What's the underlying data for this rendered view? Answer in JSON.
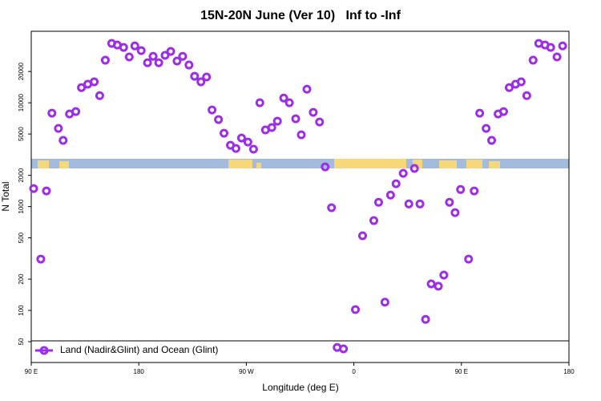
{
  "chart_data": {
    "type": "scatter",
    "title": "15N-20N June (Ver 10)   Inf to -Inf",
    "xlabel": "Longitude (deg E)",
    "ylabel": "N Total",
    "xlim": [
      90,
      540
    ],
    "xticks": [
      {
        "value": 90,
        "label": "90 E"
      },
      180,
      {
        "value": 270,
        "label": "90 W"
      },
      {
        "value": 360,
        "label": "0"
      },
      {
        "value": 450,
        "label": "90 E"
      },
      {
        "value": 540,
        "label": "180"
      }
    ],
    "ylim": [
      31.5,
      48800
    ],
    "log_y": true,
    "yticks": [
      50,
      100,
      200,
      500,
      1000,
      2000,
      5000,
      10000,
      20000
    ],
    "legend": "bottom left",
    "series": [
      {
        "name": "Land (Nadir&Glint) and Ocean (Glint)",
        "color": "#9b2ee6",
        "x": [
          92,
          98,
          102.7,
          107.3,
          112.7,
          116.7,
          122,
          127.3,
          132,
          137.3,
          142.7,
          147.3,
          152,
          157.3,
          162,
          167.3,
          172,
          176.7,
          182,
          187.3,
          192,
          196.7,
          202,
          206.7,
          212,
          216.7,
          222,
          226.7,
          232,
          236.7,
          241.3,
          246.7,
          251.3,
          256.7,
          261.3,
          266,
          271.3,
          276,
          281.3,
          286,
          291.3,
          296,
          301.3,
          306,
          311.3,
          316,
          320.7,
          326,
          331.3,
          336,
          341.3,
          346,
          351.3,
          361.3,
          367.3,
          376.7,
          380.7,
          386,
          390.7,
          395.3,
          401.3,
          406,
          410.7,
          415.3,
          420,
          424.7,
          430.7,
          435.3,
          440,
          444.7,
          449.3,
          456,
          460.7,
          465.3,
          470.7,
          475.3,
          480.7,
          485.3,
          490,
          495.3,
          500,
          504.7,
          510,
          514.7,
          520,
          524.7,
          530,
          534.7
        ],
        "values": [
          1490,
          312,
          1415,
          7940,
          5660,
          4340,
          7800,
          8230,
          14000,
          15100,
          15900,
          11700,
          25700,
          37300,
          36000,
          34100,
          27600,
          35300,
          31800,
          24300,
          28000,
          24300,
          28600,
          31200,
          25200,
          28000,
          23100,
          18000,
          15900,
          17700,
          8530,
          6890,
          5090,
          3900,
          3630,
          4570,
          4180,
          3570,
          10000,
          5470,
          5770,
          6650,
          11100,
          10000,
          7010,
          4910,
          13500,
          8080,
          6530,
          2410,
          975,
          44,
          42.6,
          101.8,
          523,
          733,
          1100,
          120,
          1290,
          1660,
          2090,
          1060,
          2330,
          1060,
          82,
          180,
          171,
          219,
          1100,
          875,
          1460,
          312,
          1415,
          7940,
          5660,
          4340,
          7800,
          8230,
          14000,
          15100,
          15900,
          11700,
          25700,
          37300,
          36000,
          34100,
          27600,
          35300
        ]
      }
    ]
  }
}
